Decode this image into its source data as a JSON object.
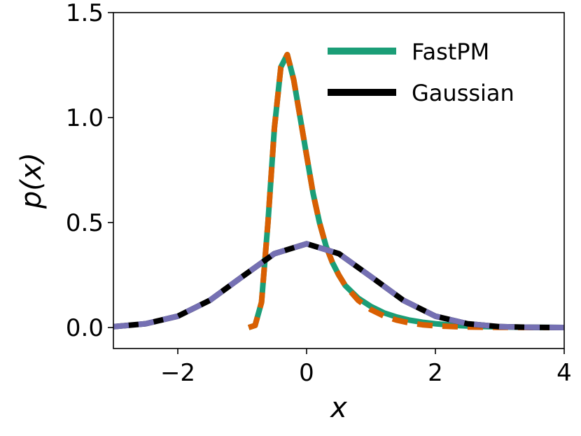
{
  "chart_data": {
    "type": "line",
    "xlabel": "x",
    "ylabel": "p(x)",
    "xlim": [
      -3,
      4
    ],
    "ylim": [
      -0.1,
      1.5
    ],
    "x_ticks": [
      -2,
      0,
      2,
      4
    ],
    "x_tick_labels": [
      "−2",
      "0",
      "2",
      "4"
    ],
    "y_ticks": [
      0.0,
      0.5,
      1.0,
      1.5
    ],
    "y_tick_labels": [
      "0.0",
      "0.5",
      "1.0",
      "1.5"
    ],
    "grid": false,
    "legend_position": "top-right",
    "legend": [
      {
        "label": "FastPM",
        "color": "#1b9e77"
      },
      {
        "label": "Gaussian",
        "color": "#000000"
      }
    ],
    "series": [
      {
        "name": "FastPM",
        "color": "#1b9e77",
        "style": "solid",
        "x": [
          -0.9,
          -0.8,
          -0.7,
          -0.6,
          -0.5,
          -0.4,
          -0.3,
          -0.2,
          -0.1,
          0.0,
          0.1,
          0.2,
          0.3,
          0.4,
          0.5,
          0.6,
          0.8,
          1.0,
          1.2,
          1.4,
          1.6,
          1.8,
          2.0,
          2.3,
          2.6,
          3.0,
          3.5,
          4.0
        ],
        "y": [
          0.0,
          0.01,
          0.12,
          0.5,
          0.95,
          1.24,
          1.3,
          1.18,
          1.0,
          0.82,
          0.64,
          0.5,
          0.39,
          0.31,
          0.25,
          0.2,
          0.14,
          0.1,
          0.07,
          0.05,
          0.035,
          0.025,
          0.018,
          0.01,
          0.006,
          0.003,
          0.001,
          0.0
        ]
      },
      {
        "name": "",
        "color": "#d95f02",
        "style": "dashed",
        "x": [
          -0.9,
          -0.8,
          -0.7,
          -0.6,
          -0.5,
          -0.4,
          -0.3,
          -0.2,
          -0.1,
          0.0,
          0.1,
          0.2,
          0.3,
          0.4,
          0.5,
          0.6,
          0.8,
          1.0,
          1.2,
          1.4,
          1.6,
          1.8,
          2.0,
          2.3,
          2.6,
          3.0,
          3.5,
          4.0
        ],
        "y": [
          0.0,
          0.01,
          0.12,
          0.5,
          0.95,
          1.24,
          1.3,
          1.18,
          1.0,
          0.82,
          0.64,
          0.5,
          0.39,
          0.31,
          0.25,
          0.2,
          0.13,
          0.085,
          0.055,
          0.035,
          0.022,
          0.013,
          0.008,
          0.004,
          0.002,
          0.001,
          0.0,
          0.0
        ]
      },
      {
        "name": "Gaussian",
        "color": "#000000",
        "style": "solid",
        "x": [
          -3.0,
          -2.5,
          -2.0,
          -1.5,
          -1.0,
          -0.5,
          0.0,
          0.5,
          1.0,
          1.5,
          2.0,
          2.5,
          3.0,
          3.5,
          4.0
        ],
        "y": [
          0.004,
          0.018,
          0.054,
          0.13,
          0.242,
          0.352,
          0.399,
          0.352,
          0.242,
          0.13,
          0.054,
          0.018,
          0.004,
          0.001,
          0.0
        ]
      },
      {
        "name": "",
        "color": "#7570b3",
        "style": "dashed",
        "x": [
          -3.0,
          -2.5,
          -2.0,
          -1.5,
          -1.0,
          -0.5,
          0.0,
          0.5,
          1.0,
          1.5,
          2.0,
          2.5,
          3.0,
          3.5,
          4.0
        ],
        "y": [
          0.004,
          0.018,
          0.054,
          0.13,
          0.242,
          0.352,
          0.399,
          0.352,
          0.242,
          0.13,
          0.054,
          0.018,
          0.004,
          0.001,
          0.0
        ]
      }
    ]
  }
}
